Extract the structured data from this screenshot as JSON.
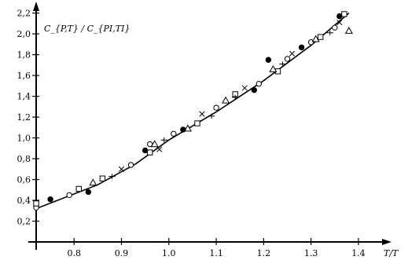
{
  "chart_data": {
    "type": "scatter",
    "title": "",
    "ylabel": "C_{P,T} / C_{PI,TI}",
    "xlabel": "T/T",
    "xlim": [
      0.72,
      1.42
    ],
    "ylim": [
      0.0,
      2.22
    ],
    "x_ticks": [
      "0.8",
      "0.9",
      "1.0",
      "1.1",
      "1.2",
      "1.3",
      "1.4"
    ],
    "x_tick_values": [
      0.8,
      0.9,
      1.0,
      1.1,
      1.2,
      1.3,
      1.4
    ],
    "y_ticks": [
      "0,2",
      "0,4",
      "0,6",
      "0,8",
      "1,0",
      "1,2",
      "1,4",
      "1,6",
      "1,8",
      "2,0",
      "2,2"
    ],
    "y_tick_values": [
      0.2,
      0.4,
      0.6,
      0.8,
      1.0,
      1.2,
      1.4,
      1.6,
      1.8,
      2.0,
      2.2
    ],
    "grid": false,
    "fit_line": {
      "x": [
        0.72,
        0.85,
        0.93,
        1.0,
        1.1,
        1.2,
        1.3,
        1.38
      ],
      "y": [
        0.32,
        0.55,
        0.75,
        0.98,
        1.25,
        1.55,
        1.89,
        2.2
      ]
    },
    "series": [
      {
        "marker": "circle",
        "x": [
          0.72,
          0.79,
          0.92,
          0.96,
          1.01,
          1.1,
          1.19,
          1.25,
          1.3,
          1.35
        ],
        "y": [
          0.33,
          0.45,
          0.74,
          0.94,
          1.04,
          1.29,
          1.52,
          1.76,
          1.92,
          2.06
        ]
      },
      {
        "marker": "square",
        "x": [
          0.72,
          0.81,
          0.86,
          0.96,
          1.06,
          1.14,
          1.23,
          1.32,
          1.37
        ],
        "y": [
          0.37,
          0.51,
          0.61,
          0.86,
          1.14,
          1.42,
          1.64,
          1.97,
          2.19
        ]
      },
      {
        "marker": "triangle",
        "x": [
          0.84,
          0.97,
          1.04,
          1.12,
          1.22,
          1.31,
          1.38
        ],
        "y": [
          0.57,
          0.94,
          1.09,
          1.36,
          1.66,
          1.95,
          2.03
        ]
      },
      {
        "marker": "cross",
        "x": [
          0.9,
          0.98,
          1.07,
          1.16,
          1.26,
          1.36
        ],
        "y": [
          0.7,
          0.89,
          1.23,
          1.48,
          1.81,
          2.11
        ]
      },
      {
        "marker": "filled",
        "x": [
          0.75,
          0.83,
          0.95,
          1.03,
          1.18,
          1.21,
          1.28,
          1.36
        ],
        "y": [
          0.41,
          0.48,
          0.88,
          1.08,
          1.46,
          1.75,
          1.87,
          2.17
        ]
      },
      {
        "marker": "dash",
        "x": [
          0.88,
          0.99,
          1.09,
          1.14,
          1.24,
          1.34
        ],
        "y": [
          0.63,
          0.98,
          1.21,
          1.39,
          1.71,
          2.01
        ]
      }
    ]
  }
}
